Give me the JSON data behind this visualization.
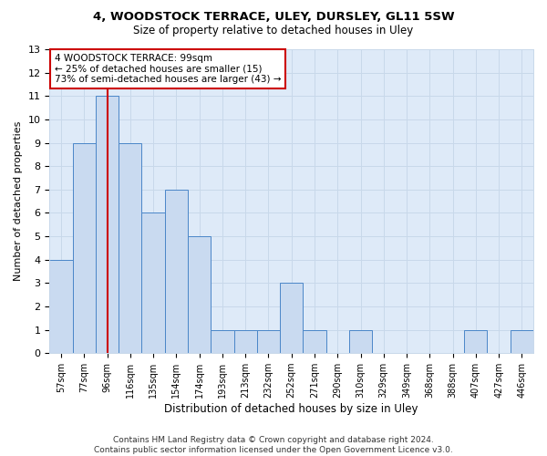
{
  "title1": "4, WOODSTOCK TERRACE, ULEY, DURSLEY, GL11 5SW",
  "title2": "Size of property relative to detached houses in Uley",
  "xlabel": "Distribution of detached houses by size in Uley",
  "ylabel": "Number of detached properties",
  "categories": [
    "57sqm",
    "77sqm",
    "96sqm",
    "116sqm",
    "135sqm",
    "154sqm",
    "174sqm",
    "193sqm",
    "213sqm",
    "232sqm",
    "252sqm",
    "271sqm",
    "290sqm",
    "310sqm",
    "329sqm",
    "349sqm",
    "368sqm",
    "388sqm",
    "407sqm",
    "427sqm",
    "446sqm"
  ],
  "values": [
    4,
    9,
    11,
    9,
    6,
    7,
    5,
    1,
    1,
    1,
    3,
    1,
    0,
    1,
    0,
    0,
    0,
    0,
    1,
    0,
    1
  ],
  "bar_color": "#c9daf0",
  "bar_edge_color": "#4a86c8",
  "highlight_bar_index": 2,
  "highlight_line_color": "#cc0000",
  "ylim": [
    0,
    13
  ],
  "yticks": [
    0,
    1,
    2,
    3,
    4,
    5,
    6,
    7,
    8,
    9,
    10,
    11,
    12,
    13
  ],
  "annotation_text": "4 WOODSTOCK TERRACE: 99sqm\n← 25% of detached houses are smaller (15)\n73% of semi-detached houses are larger (43) →",
  "annotation_box_color": "#ffffff",
  "annotation_box_edge_color": "#cc0000",
  "footer_text": "Contains HM Land Registry data © Crown copyright and database right 2024.\nContains public sector information licensed under the Open Government Licence v3.0.",
  "grid_color": "#c8d8ea",
  "background_color": "#deeaf8"
}
